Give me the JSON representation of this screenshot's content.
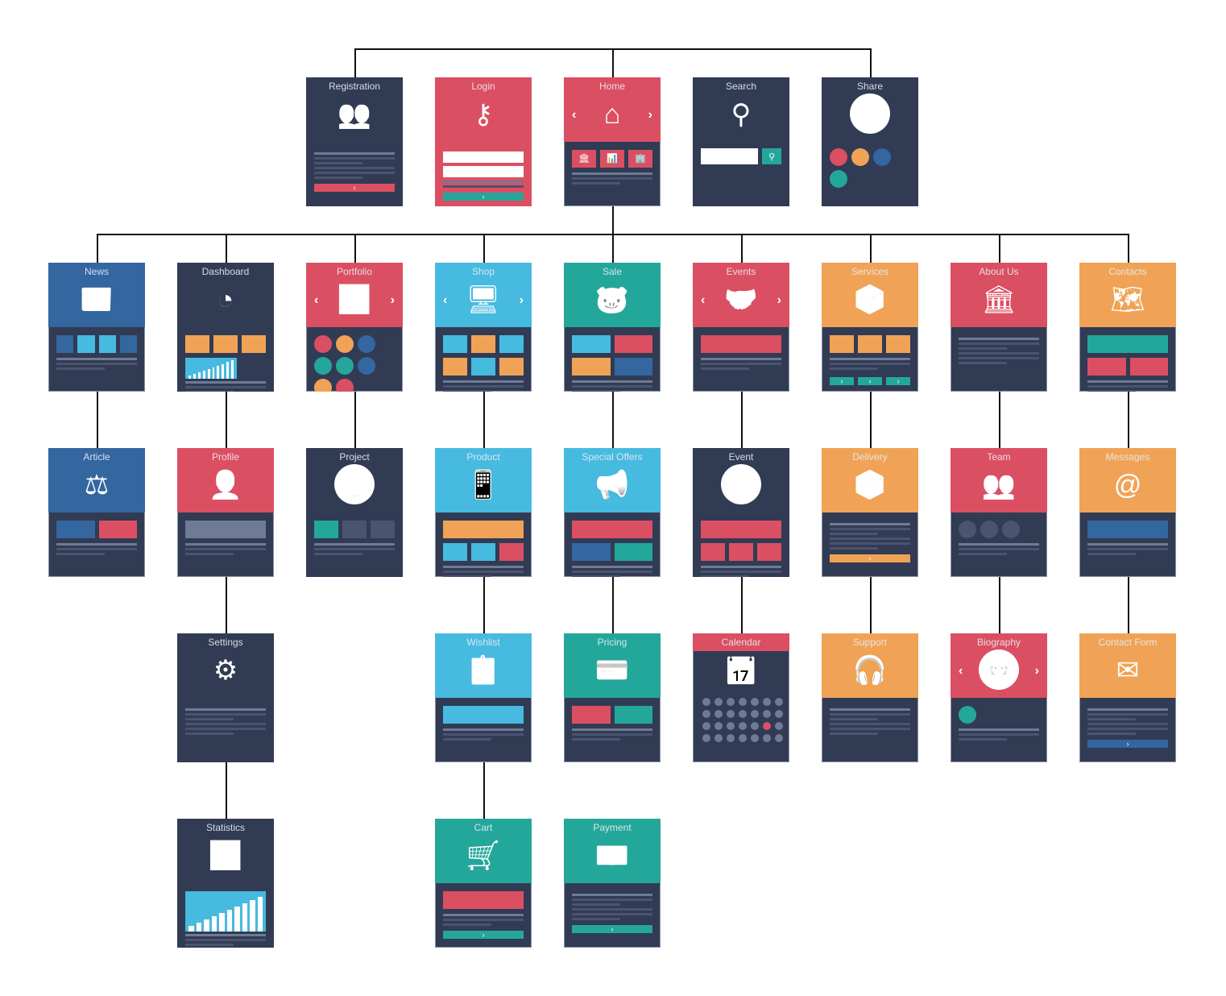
{
  "colors": {
    "navy": "#313b54",
    "red": "#db4f63",
    "blue": "#3466a0",
    "lightblue": "#47bae0",
    "teal": "#24a79b",
    "orange": "#f0a356",
    "line": "#111111"
  },
  "cards": [
    {
      "id": "registration",
      "title": "Registration",
      "color": "navy",
      "head": "full",
      "icon": "users-icon",
      "glyph": "👥",
      "body": "lines",
      "button": "red"
    },
    {
      "id": "login",
      "title": "Login",
      "color": "red",
      "head": "full",
      "icon": "key-icon",
      "glyph": "⚷",
      "body": "login",
      "button": "teal"
    },
    {
      "id": "home",
      "title": "Home",
      "color": "red",
      "head": "half",
      "icon": "house-icon",
      "glyph": "⌂",
      "arrows": true,
      "tiles": [
        "red",
        "red",
        "red"
      ],
      "tileGlyphs": [
        "🏛",
        "📊",
        "🏢"
      ]
    },
    {
      "id": "search",
      "title": "Search",
      "color": "navy",
      "head": "full",
      "icon": "search-icon",
      "glyph": "⚲",
      "body": "search"
    },
    {
      "id": "share",
      "title": "Share",
      "color": "navy",
      "head": "full",
      "icon": "thumbs-up-icon",
      "glyph": "👍",
      "circle": "orange",
      "body": "share",
      "tiles": [
        "red",
        "orange",
        "blue",
        "teal"
      ]
    },
    {
      "id": "news",
      "title": "News",
      "color": "blue",
      "head": "half",
      "icon": "newspaper-icon",
      "glyph": "📰",
      "tiles": [
        "blue",
        "lightblue",
        "lightblue",
        "blue"
      ]
    },
    {
      "id": "dashboard",
      "title": "Dashboard",
      "color": "navy",
      "head": "full",
      "icon": "gauge-icon",
      "glyph": "◔",
      "tiles": [
        "orange",
        "orange",
        "orange"
      ],
      "bars": true
    },
    {
      "id": "portfolio",
      "title": "Portfolio",
      "color": "red",
      "head": "half",
      "icon": "presentation-icon",
      "glyph": "📈",
      "arrows": true,
      "rounds": [
        "red",
        "orange",
        "blue",
        "teal",
        "teal",
        "blue",
        "orange",
        "red"
      ]
    },
    {
      "id": "shop",
      "title": "Shop",
      "color": "lightblue",
      "head": "half",
      "icon": "monitor-icon",
      "glyph": "🖥",
      "arrows": true,
      "tiles": [
        "lightblue",
        "orange",
        "lightblue"
      ],
      "tiles2": [
        "orange",
        "lightblue",
        "orange"
      ]
    },
    {
      "id": "sale",
      "title": "Sale",
      "color": "teal",
      "head": "half",
      "icon": "piggy-bank-icon",
      "glyph": "🐷",
      "tiles": [
        "lightblue",
        "red"
      ],
      "tiles2": [
        "orange",
        "blue"
      ]
    },
    {
      "id": "events",
      "title": "Events",
      "color": "red",
      "head": "half",
      "icon": "handshake-icon",
      "glyph": "🤝",
      "arrows": true,
      "tiles": [
        "red"
      ]
    },
    {
      "id": "services",
      "title": "Services",
      "color": "orange",
      "head": "half",
      "icon": "support-icon",
      "glyph": "📦",
      "tiles": [
        "orange",
        "orange",
        "orange"
      ],
      "tealbtns": true
    },
    {
      "id": "about",
      "title": "About Us",
      "color": "red",
      "head": "half",
      "icon": "building-icon",
      "glyph": "🏛"
    },
    {
      "id": "contacts",
      "title": "Contacts",
      "color": "orange",
      "head": "half",
      "icon": "map-icon",
      "glyph": "🗺",
      "tiles": [
        "teal"
      ],
      "tiles2": [
        "red",
        "red"
      ]
    },
    {
      "id": "article",
      "title": "Article",
      "color": "blue",
      "head": "half",
      "icon": "scales-icon",
      "glyph": "⚖",
      "tiles": [
        "blue",
        "red"
      ]
    },
    {
      "id": "profile",
      "title": "Profile",
      "color": "red",
      "head": "half",
      "icon": "user-icon",
      "glyph": "👤",
      "tiles": [
        "#6f7a94"
      ]
    },
    {
      "id": "project",
      "title": "Project",
      "color": "navy",
      "head": "full",
      "icon": "lightbulb-icon",
      "glyph": "💡",
      "circle": "red",
      "tiles": [
        "teal",
        "#4a5470",
        "#4a5470"
      ]
    },
    {
      "id": "product",
      "title": "Product",
      "color": "lightblue",
      "head": "half",
      "icon": "phone-icon",
      "glyph": "📱",
      "tiles": [
        "orange"
      ],
      "tiles2": [
        "lightblue",
        "lightblue",
        "red"
      ]
    },
    {
      "id": "special",
      "title": "Special Offers",
      "color": "lightblue",
      "head": "half",
      "icon": "megaphone-icon",
      "glyph": "📢",
      "tiles": [
        "red"
      ],
      "tiles2": [
        "blue",
        "teal"
      ]
    },
    {
      "id": "event",
      "title": "Event",
      "color": "navy",
      "head": "full",
      "icon": "handshake-icon",
      "glyph": "🤝",
      "circle": "red",
      "tiles": [
        "red"
      ],
      "tiles2": [
        "red",
        "red",
        "red"
      ]
    },
    {
      "id": "delivery",
      "title": "Delivery",
      "color": "orange",
      "head": "half",
      "icon": "delivery-box-icon",
      "glyph": "📦",
      "button": "orange"
    },
    {
      "id": "team",
      "title": "Team",
      "color": "red",
      "head": "half",
      "icon": "team-icon",
      "glyph": "👥",
      "rounds": [
        "#4a5470",
        "#4a5470",
        "#4a5470"
      ]
    },
    {
      "id": "messages",
      "title": "Messages",
      "color": "orange",
      "head": "half",
      "icon": "at-sign-icon",
      "glyph": "@",
      "tiles": [
        "blue"
      ]
    },
    {
      "id": "settings",
      "title": "Settings",
      "color": "navy",
      "head": "full",
      "icon": "gear-icon",
      "glyph": "⚙"
    },
    {
      "id": "wishlist",
      "title": "Wishlist",
      "color": "lightblue",
      "head": "half",
      "icon": "clipboard-icon",
      "glyph": "📋",
      "tiles": [
        "lightblue"
      ]
    },
    {
      "id": "pricing",
      "title": "Pricing",
      "color": "teal",
      "head": "half",
      "icon": "credit-card-icon",
      "glyph": "💳",
      "tiles": [
        "red",
        "teal"
      ]
    },
    {
      "id": "calendar",
      "title": "Calendar",
      "color": "red",
      "head": "bar",
      "icon": "calendar-icon",
      "glyph": "📅",
      "dots": true
    },
    {
      "id": "support",
      "title": "Support",
      "color": "orange",
      "head": "half",
      "icon": "headset-icon",
      "glyph": "🎧"
    },
    {
      "id": "biography",
      "title": "Biography",
      "color": "red",
      "head": "half",
      "icon": "avatar-icon",
      "glyph": "👷",
      "circle": "orange",
      "arrows": true,
      "rounds": [
        "teal"
      ]
    },
    {
      "id": "contactform",
      "title": "Contact Form",
      "color": "orange",
      "head": "half",
      "icon": "envelope-icon",
      "glyph": "✉",
      "button": "blue"
    },
    {
      "id": "statistics",
      "title": "Statistics",
      "color": "navy",
      "head": "full",
      "icon": "bar-chart-icon",
      "glyph": "📊",
      "bigbars": true
    },
    {
      "id": "cart",
      "title": "Cart",
      "color": "teal",
      "head": "half",
      "icon": "cart-icon",
      "glyph": "🛒",
      "tiles": [
        "red"
      ],
      "button": "teal"
    },
    {
      "id": "payment",
      "title": "Payment",
      "color": "teal",
      "head": "half",
      "icon": "cash-icon",
      "glyph": "💵",
      "button": "teal"
    }
  ],
  "links": [
    [
      "home",
      "registration"
    ],
    [
      "home",
      "share"
    ],
    [
      "home",
      "news"
    ],
    [
      "home",
      "dashboard"
    ],
    [
      "home",
      "portfolio"
    ],
    [
      "home",
      "shop"
    ],
    [
      "home",
      "sale"
    ],
    [
      "home",
      "events"
    ],
    [
      "home",
      "services"
    ],
    [
      "home",
      "about"
    ],
    [
      "home",
      "contacts"
    ],
    [
      "news",
      "article"
    ],
    [
      "dashboard",
      "profile"
    ],
    [
      "portfolio",
      "project"
    ],
    [
      "shop",
      "product"
    ],
    [
      "sale",
      "special"
    ],
    [
      "events",
      "event"
    ],
    [
      "services",
      "delivery"
    ],
    [
      "about",
      "team"
    ],
    [
      "contacts",
      "messages"
    ],
    [
      "profile",
      "settings"
    ],
    [
      "product",
      "wishlist"
    ],
    [
      "special",
      "pricing"
    ],
    [
      "event",
      "calendar"
    ],
    [
      "delivery",
      "support"
    ],
    [
      "team",
      "biography"
    ],
    [
      "messages",
      "contactform"
    ],
    [
      "settings",
      "statistics"
    ],
    [
      "wishlist",
      "cart"
    ]
  ],
  "button_glyph": "›"
}
